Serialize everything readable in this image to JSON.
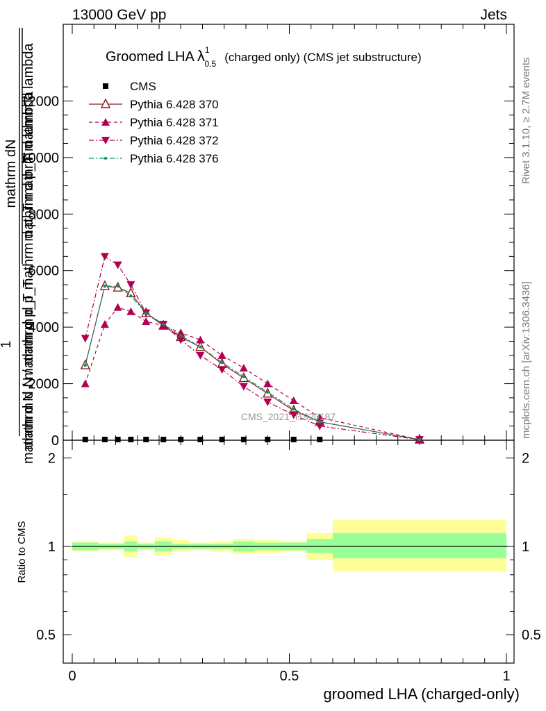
{
  "header": {
    "left": "13000 GeV pp",
    "right": "Jets"
  },
  "title": {
    "main": "Groomed LHA",
    "lambda": "λ",
    "sup": "1",
    "sub": "0.5",
    "rest": "(charged only) (CMS jet substructure)"
  },
  "side_labels": {
    "rivet": "Rivet 3.1.10, ≥ 2.7M events",
    "mcplots": "mcplots.cern.ch [arXiv:1306.3436]"
  },
  "watermark": "CMS_2021_I1920187",
  "axes": {
    "ylabel_numerator": "1",
    "ylabel_fraction1_top": "mathrm dN",
    "ylabel_fraction1_bottom": "mathrm d p_T mathrm d lambda",
    "ylabel_fraction2": "mathrm d N / mathrm d p_T",
    "ylabel_combined": "mathrm d N / mathrm d p_T mathrm d p_T mathrm d lambda",
    "ratio_ylabel": "Ratio to CMS",
    "xlabel": "groomed LHA (charged-only)",
    "x_ticks": [
      "0",
      "0.5",
      "1"
    ],
    "main_y_ticks": [
      "0",
      "2000",
      "4000",
      "6000",
      "8000",
      "10000",
      "12000"
    ],
    "ratio_y_ticks": [
      "0.5",
      "1",
      "2"
    ]
  },
  "legend": [
    {
      "label": "CMS"
    },
    {
      "label": "Pythia 6.428 370"
    },
    {
      "label": "Pythia 6.428 371"
    },
    {
      "label": "Pythia 6.428 372"
    },
    {
      "label": "Pythia 6.428 376"
    }
  ],
  "colors": {
    "cms": "#000000",
    "p370": "#8b1a1a",
    "p371": "#b0004f",
    "p372": "#b0004f",
    "p376": "#009966",
    "band_inner": "#99ff99",
    "band_outer": "#ffff99"
  },
  "chart_data": {
    "type": "line",
    "xlim": [
      0,
      1
    ],
    "ylim": [
      0,
      13000
    ],
    "ratio_ylim": [
      0.4,
      2.3
    ],
    "ratio_scale": "log",
    "grid": false,
    "legend_position": "top-left",
    "x": [
      0.03,
      0.075,
      0.105,
      0.135,
      0.17,
      0.21,
      0.25,
      0.295,
      0.345,
      0.395,
      0.45,
      0.51,
      0.57,
      0.8
    ],
    "series": [
      {
        "name": "CMS",
        "marker": "square",
        "x": [
          0.03,
          0.075,
          0.105,
          0.135,
          0.17,
          0.21,
          0.25,
          0.295,
          0.345,
          0.395,
          0.45,
          0.51,
          0.57
        ],
        "values": [
          0,
          0,
          0,
          0,
          0,
          0,
          0,
          0,
          0,
          0,
          0,
          0,
          0
        ]
      },
      {
        "name": "Pythia 6.428 370",
        "marker": "triangle-up-open",
        "dash": "solid",
        "values": [
          2650,
          5450,
          5400,
          5200,
          4500,
          4050,
          3650,
          3300,
          2700,
          2200,
          1650,
          1050,
          650,
          20
        ]
      },
      {
        "name": "Pythia 6.428 371",
        "marker": "triangle-up",
        "dash": "dashed",
        "values": [
          2000,
          4100,
          4700,
          4550,
          4200,
          4050,
          3800,
          3550,
          3000,
          2550,
          2000,
          1400,
          800,
          20
        ]
      },
      {
        "name": "Pythia 6.428 372",
        "marker": "triangle-down",
        "dash": "dashdot",
        "values": [
          3600,
          6500,
          6200,
          5500,
          4500,
          4100,
          3550,
          3000,
          2500,
          1900,
          1350,
          900,
          500,
          20
        ]
      },
      {
        "name": "Pythia 6.428 376",
        "marker": "circle-small",
        "dash": "dashdot",
        "values": [
          2650,
          5450,
          5450,
          5100,
          4500,
          4100,
          3700,
          3300,
          2750,
          2250,
          1700,
          1100,
          650,
          20
        ]
      }
    ],
    "ratio_bands": [
      {
        "x0": 0.0,
        "x1": 0.06,
        "inner": [
          0.97,
          1.03
        ],
        "outer": [
          0.96,
          1.04
        ]
      },
      {
        "x0": 0.06,
        "x1": 0.09,
        "inner": [
          0.98,
          1.02
        ],
        "outer": [
          0.97,
          1.03
        ]
      },
      {
        "x0": 0.09,
        "x1": 0.12,
        "inner": [
          0.98,
          1.02
        ],
        "outer": [
          0.97,
          1.03
        ]
      },
      {
        "x0": 0.12,
        "x1": 0.15,
        "inner": [
          0.96,
          1.04
        ],
        "outer": [
          0.92,
          1.09
        ]
      },
      {
        "x0": 0.15,
        "x1": 0.19,
        "inner": [
          0.98,
          1.02
        ],
        "outer": [
          0.97,
          1.03
        ]
      },
      {
        "x0": 0.19,
        "x1": 0.23,
        "inner": [
          0.96,
          1.04
        ],
        "outer": [
          0.93,
          1.07
        ]
      },
      {
        "x0": 0.23,
        "x1": 0.27,
        "inner": [
          0.98,
          1.02
        ],
        "outer": [
          0.96,
          1.05
        ]
      },
      {
        "x0": 0.27,
        "x1": 0.32,
        "inner": [
          0.98,
          1.02
        ],
        "outer": [
          0.97,
          1.03
        ]
      },
      {
        "x0": 0.32,
        "x1": 0.37,
        "inner": [
          0.98,
          1.02
        ],
        "outer": [
          0.96,
          1.04
        ]
      },
      {
        "x0": 0.37,
        "x1": 0.42,
        "inner": [
          0.96,
          1.04
        ],
        "outer": [
          0.94,
          1.06
        ]
      },
      {
        "x0": 0.42,
        "x1": 0.48,
        "inner": [
          0.97,
          1.03
        ],
        "outer": [
          0.95,
          1.05
        ]
      },
      {
        "x0": 0.48,
        "x1": 0.54,
        "inner": [
          0.97,
          1.03
        ],
        "outer": [
          0.96,
          1.04
        ]
      },
      {
        "x0": 0.54,
        "x1": 0.6,
        "inner": [
          0.95,
          1.06
        ],
        "outer": [
          0.9,
          1.11
        ]
      },
      {
        "x0": 0.6,
        "x1": 1.0,
        "inner": [
          0.91,
          1.11
        ],
        "outer": [
          0.82,
          1.23
        ]
      }
    ]
  }
}
